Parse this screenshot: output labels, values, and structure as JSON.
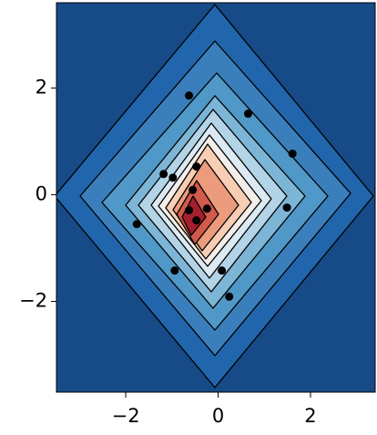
{
  "chart_data": {
    "type": "scatter",
    "x": [
      -0.63,
      0.65,
      1.61,
      -1.18,
      -0.98,
      -0.47,
      -0.55,
      -0.63,
      -0.24,
      -0.47,
      1.49,
      -1.76,
      -0.94,
      0.08,
      0.24
    ],
    "y": [
      1.86,
      1.52,
      0.77,
      0.39,
      0.32,
      0.53,
      0.09,
      -0.29,
      -0.26,
      -0.48,
      -0.24,
      -0.55,
      -1.42,
      -1.42,
      -1.91
    ],
    "color": "#000000",
    "xlim": [
      -3.5,
      3.4
    ],
    "ylim": [
      -3.7,
      3.6
    ],
    "xticks": [
      {
        "value": -2,
        "label": "−2"
      },
      0,
      2
    ],
    "yticks": [
      {
        "value": -2,
        "label": "−2"
      },
      0,
      2
    ]
  }
}
